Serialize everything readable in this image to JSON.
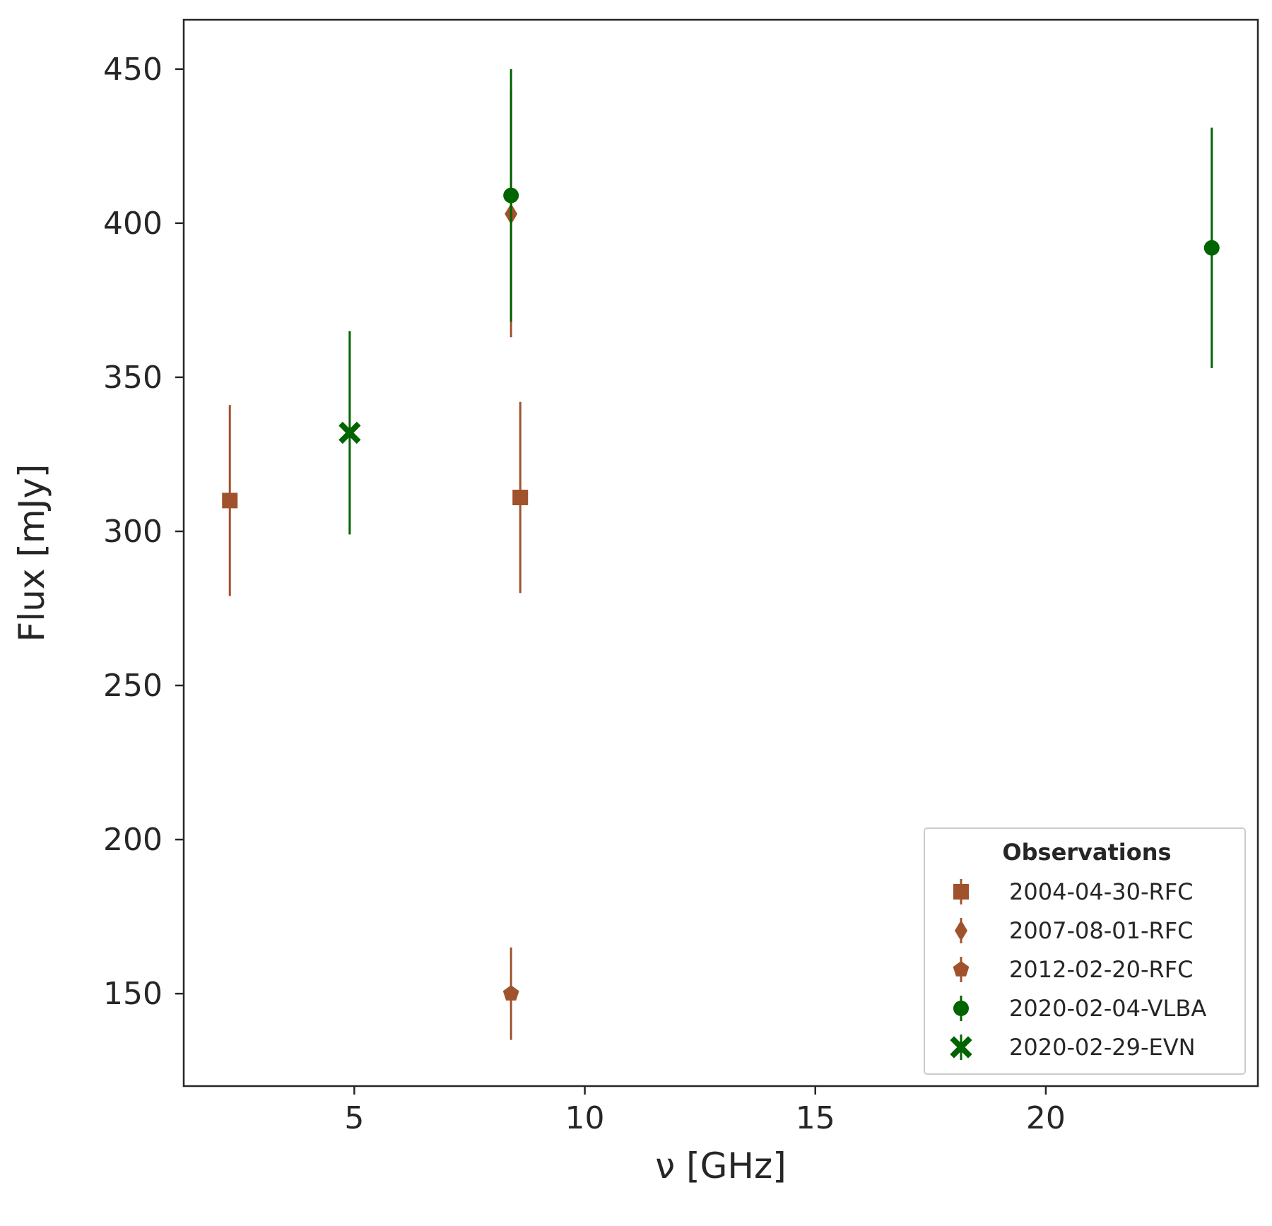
{
  "chart_data": {
    "type": "scatter",
    "title": "",
    "xlabel": "ν [GHz]",
    "ylabel": "Flux [mJy]",
    "xlim": [
      1.3,
      24.6
    ],
    "ylim": [
      120,
      466
    ],
    "xticks": [
      5,
      10,
      15,
      20
    ],
    "yticks": [
      150,
      200,
      250,
      300,
      350,
      400,
      450
    ],
    "grid": false,
    "legend": {
      "title": "Observations",
      "position": "lower right"
    },
    "series": [
      {
        "name": "2004-04-30-RFC",
        "marker": "square",
        "color": "#a0522d",
        "points": [
          {
            "x": 2.3,
            "y": 310,
            "err": 31
          },
          {
            "x": 8.6,
            "y": 311,
            "err": 31
          }
        ]
      },
      {
        "name": "2007-08-01-RFC",
        "marker": "diamond",
        "color": "#a0522d",
        "points": [
          {
            "x": 8.4,
            "y": 403,
            "err": 40
          }
        ]
      },
      {
        "name": "2012-02-20-RFC",
        "marker": "pentagon",
        "color": "#a0522d",
        "points": [
          {
            "x": 8.4,
            "y": 150,
            "err": 15
          }
        ]
      },
      {
        "name": "2020-02-04-VLBA",
        "marker": "circle",
        "color": "#006400",
        "points": [
          {
            "x": 8.4,
            "y": 409,
            "err": 41
          },
          {
            "x": 23.6,
            "y": 392,
            "err": 39
          }
        ]
      },
      {
        "name": "2020-02-29-EVN",
        "marker": "x-filled",
        "color": "#006400",
        "points": [
          {
            "x": 4.9,
            "y": 332,
            "err": 33
          }
        ]
      }
    ]
  }
}
